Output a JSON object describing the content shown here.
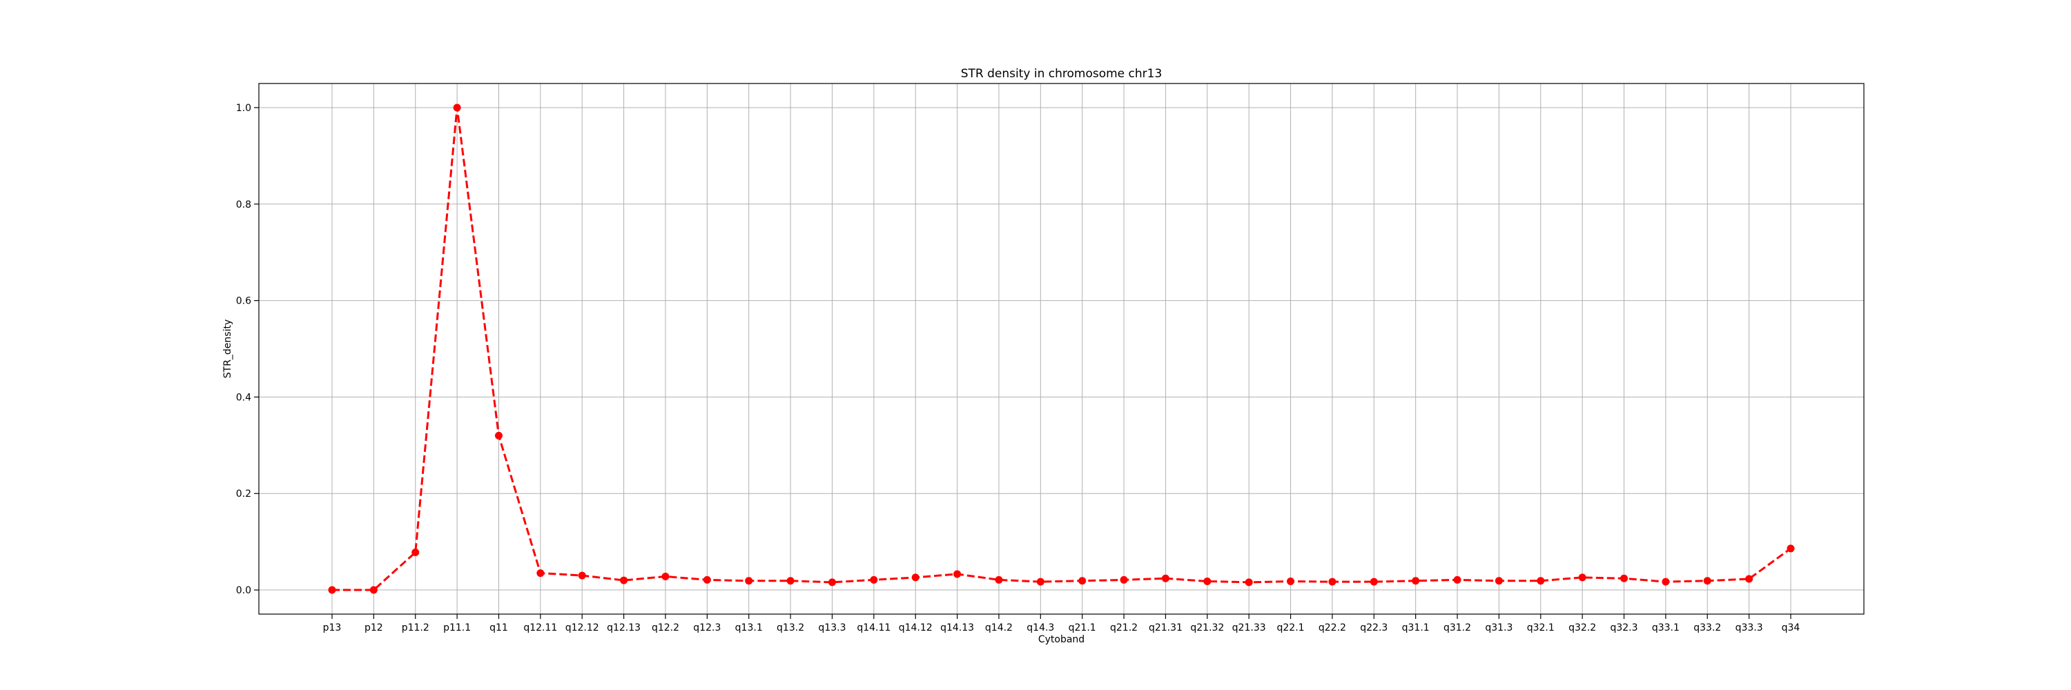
{
  "chart_data": {
    "type": "line",
    "title": "STR density in chromosome chr13",
    "xlabel": "Cytoband",
    "ylabel": "STR_density",
    "ylim": [
      -0.05,
      1.05
    ],
    "yticks": [
      "0.0",
      "0.2",
      "0.4",
      "0.6",
      "0.8",
      "1.0"
    ],
    "grid": true,
    "categories": [
      "p13",
      "p12",
      "p11.2",
      "p11.1",
      "q11",
      "q12.11",
      "q12.12",
      "q12.13",
      "q12.2",
      "q12.3",
      "q13.1",
      "q13.2",
      "q13.3",
      "q14.11",
      "q14.12",
      "q14.13",
      "q14.2",
      "q14.3",
      "q21.1",
      "q21.2",
      "q21.31",
      "q21.32",
      "q21.33",
      "q22.1",
      "q22.2",
      "q22.3",
      "q31.1",
      "q31.2",
      "q31.3",
      "q32.1",
      "q32.2",
      "q32.3",
      "q33.1",
      "q33.2",
      "q33.3",
      "q34"
    ],
    "series": [
      {
        "color": "#ff0000",
        "line_style": "dashed",
        "marker": "circle",
        "values": [
          0.0,
          0.0,
          0.078,
          1.0,
          0.32,
          0.035,
          0.03,
          0.02,
          0.028,
          0.021,
          0.019,
          0.019,
          0.016,
          0.021,
          0.026,
          0.033,
          0.021,
          0.017,
          0.019,
          0.021,
          0.024,
          0.018,
          0.016,
          0.018,
          0.017,
          0.017,
          0.019,
          0.021,
          0.019,
          0.019,
          0.026,
          0.024,
          0.017,
          0.019,
          0.023,
          0.086
        ]
      }
    ]
  }
}
